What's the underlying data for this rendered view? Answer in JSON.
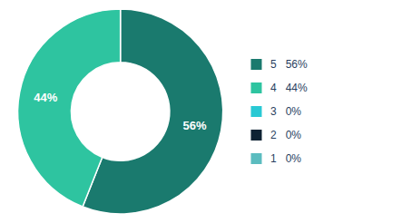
{
  "chart_data": {
    "type": "donut",
    "categories": [
      "5   56%",
      "4   44%",
      "3   0%",
      "2   0%",
      "1   0%"
    ],
    "values": [
      56,
      44,
      0,
      0,
      0
    ],
    "value_labels": [
      "56%",
      "44%",
      "0%",
      "0%",
      "0%"
    ],
    "colors": [
      "#1a7a6e",
      "#2ec4a0",
      "#29c9d4",
      "#0d2233",
      "#5bbcbf"
    ],
    "data_labels": true,
    "legend": "right"
  }
}
